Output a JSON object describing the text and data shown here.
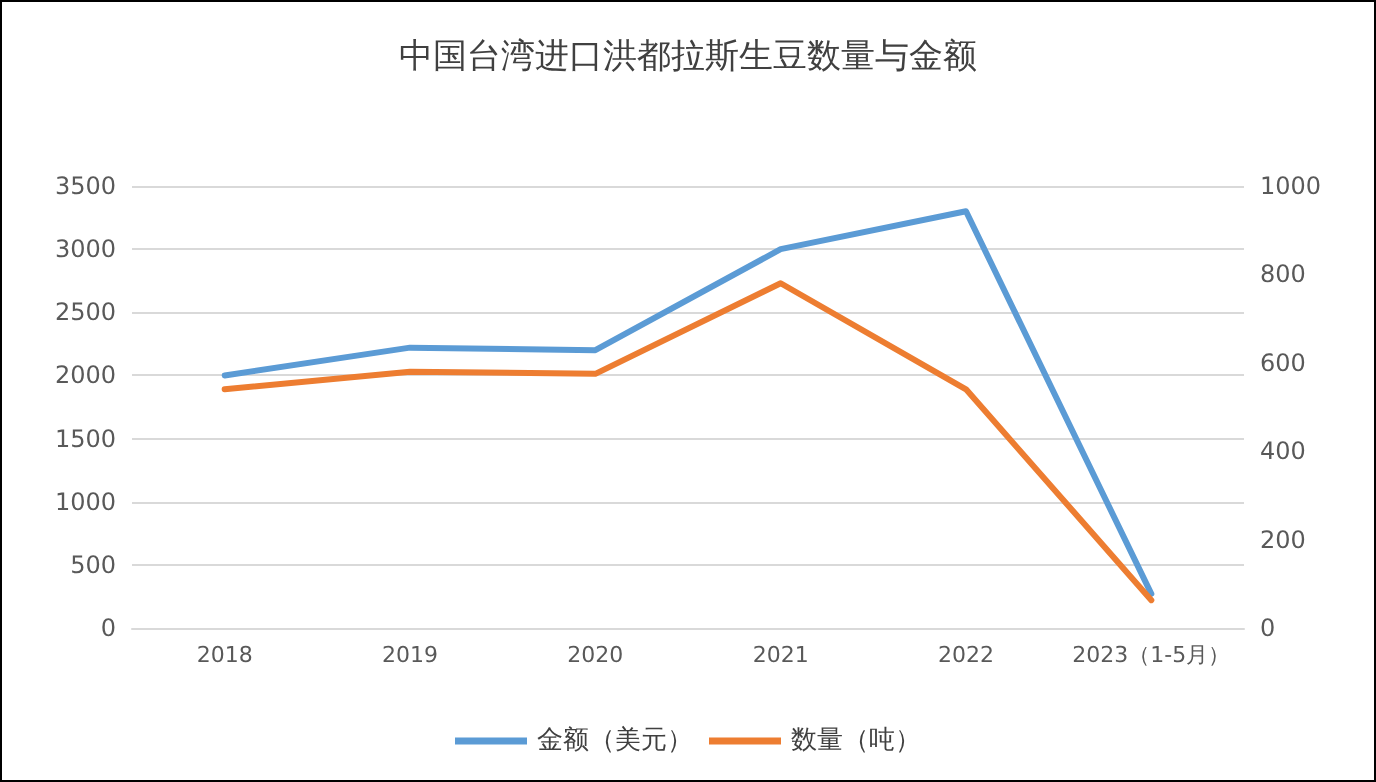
{
  "chart_data": {
    "type": "line",
    "title": "中国台湾进口洪都拉斯生豆数量与金额",
    "categories": [
      "2018",
      "2019",
      "2020",
      "2021",
      "2022",
      "2023（1-5月）"
    ],
    "series": [
      {
        "name": "金额（美元）",
        "color": "#5b9bd5",
        "values": [
          2000,
          2220,
          2200,
          3000,
          3300,
          270
        ]
      },
      {
        "name": "数量（吨）",
        "color": "#ed7d31",
        "values": [
          540,
          580,
          575,
          780,
          540,
          63
        ],
        "axis": "y2"
      }
    ],
    "ylim": [
      0,
      3500
    ],
    "yticks": [
      0,
      500,
      1000,
      1500,
      2000,
      2500,
      3000,
      3500
    ],
    "y2lim": [
      0,
      1000
    ],
    "y2ticks": [
      0,
      200,
      400,
      600,
      800,
      1000
    ],
    "grid": "y",
    "legend": "bottom",
    "marker": "none",
    "line_style": "solid"
  }
}
